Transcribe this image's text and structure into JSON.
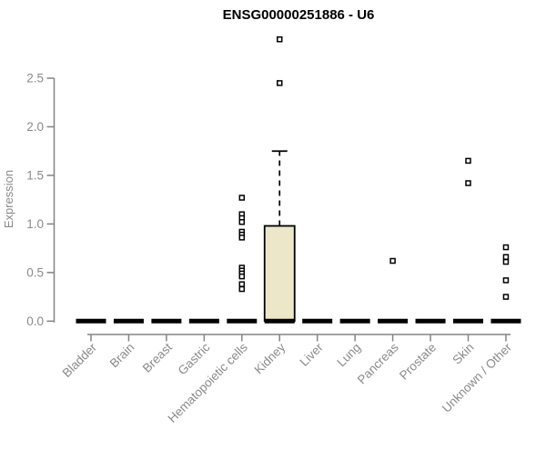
{
  "chart_data": {
    "type": "boxplot",
    "title": "ENSG00000251886 - U6",
    "ylabel": "Expression",
    "xlabel": "",
    "ylim": [
      0,
      2.95
    ],
    "yticks": [
      0,
      0.5,
      1.0,
      1.5,
      2.0,
      2.5
    ],
    "ytick_labels": [
      "0.0",
      "0.5",
      "1.0",
      "1.5",
      "2.0",
      "2.5"
    ],
    "grid": false,
    "legend": "none",
    "categories": [
      "Bladder",
      "Brain",
      "Breast",
      "Gastric",
      "Hematopoietic cells",
      "Kidney",
      "Liver",
      "Lung",
      "Pancreas",
      "Prostate",
      "Skin",
      "Unknown / Other"
    ],
    "boxes": [
      {
        "category": "Bladder",
        "low": 0,
        "q1": 0,
        "median": 0,
        "q3": 0,
        "high": 0,
        "outliers": []
      },
      {
        "category": "Brain",
        "low": 0,
        "q1": 0,
        "median": 0,
        "q3": 0,
        "high": 0,
        "outliers": []
      },
      {
        "category": "Breast",
        "low": 0,
        "q1": 0,
        "median": 0,
        "q3": 0,
        "high": 0,
        "outliers": []
      },
      {
        "category": "Gastric",
        "low": 0,
        "q1": 0,
        "median": 0,
        "q3": 0,
        "high": 0,
        "outliers": []
      },
      {
        "category": "Hematopoietic cells",
        "low": 0,
        "q1": 0,
        "median": 0,
        "q3": 0,
        "high": 0,
        "outliers": [
          1.27,
          1.1,
          1.06,
          1.02,
          0.92,
          0.89,
          0.86,
          0.55,
          0.52,
          0.49,
          0.46,
          0.38,
          0.33
        ]
      },
      {
        "category": "Kidney",
        "low": 0,
        "q1": 0,
        "median": 0,
        "q3": 0.98,
        "high": 1.75,
        "outliers": [
          2.9,
          2.45
        ]
      },
      {
        "category": "Liver",
        "low": 0,
        "q1": 0,
        "median": 0,
        "q3": 0,
        "high": 0,
        "outliers": []
      },
      {
        "category": "Lung",
        "low": 0,
        "q1": 0,
        "median": 0,
        "q3": 0,
        "high": 0,
        "outliers": []
      },
      {
        "category": "Pancreas",
        "low": 0,
        "q1": 0,
        "median": 0,
        "q3": 0,
        "high": 0,
        "outliers": [
          0.62
        ]
      },
      {
        "category": "Prostate",
        "low": 0,
        "q1": 0,
        "median": 0,
        "q3": 0,
        "high": 0,
        "outliers": []
      },
      {
        "category": "Skin",
        "low": 0,
        "q1": 0,
        "median": 0,
        "q3": 0,
        "high": 0,
        "outliers": [
          1.65,
          1.42
        ]
      },
      {
        "category": "Unknown / Other",
        "low": 0,
        "q1": 0,
        "median": 0,
        "q3": 0,
        "high": 0,
        "outliers": [
          0.76,
          0.66,
          0.61,
          0.42,
          0.25
        ]
      }
    ],
    "colors": {
      "box_fill": "#ece7c8",
      "box_stroke": "#000000",
      "median": "#000000",
      "whisker": "#000000",
      "outlier_stroke": "#000000",
      "outlier_fill": "#ffffff",
      "axis": "#848484",
      "tick_label": "#8a8a8a",
      "title": "#000000"
    }
  }
}
